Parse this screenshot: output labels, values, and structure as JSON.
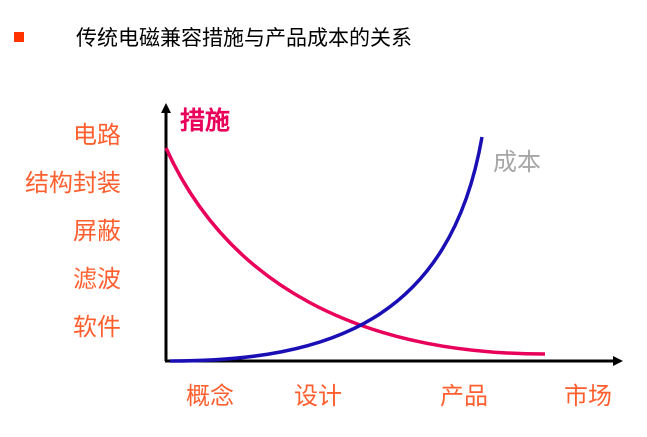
{
  "slide": {
    "title": "传统电磁兼容措施与产品成本的关系",
    "bullet_color": "#ff3300"
  },
  "y_axis": {
    "title": "措施",
    "title_color": "#e8005a",
    "levels": [
      "电路",
      "结构封装",
      "屏蔽",
      "滤波",
      "软件"
    ],
    "level_color": "#ff5f2e"
  },
  "x_axis": {
    "stages": [
      "概念",
      "设计",
      "产品",
      "市场"
    ],
    "stage_color": "#ff5f2e"
  },
  "curves": {
    "measures": {
      "color": "#e8005a",
      "icon": "decreasing-curve"
    },
    "cost": {
      "label": "成本",
      "label_color": "#a6a6a6",
      "color": "#1a0fb5",
      "icon": "increasing-curve"
    }
  }
}
